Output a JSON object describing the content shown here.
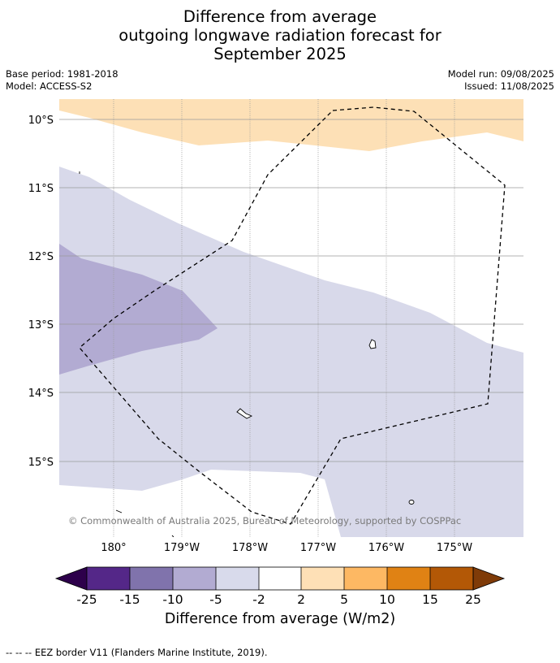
{
  "title": {
    "line1": "Difference from average",
    "line2": "outgoing longwave radiation forecast for",
    "line3": "September 2025"
  },
  "meta": {
    "base_period": "Base period: 1981-2018",
    "model": "Model: ACCESS-S2",
    "model_run": "Model run: 09/08/2025",
    "issued": "Issued: 11/08/2025"
  },
  "map": {
    "lat_labels": [
      "10°S",
      "11°S",
      "12°S",
      "13°S",
      "14°S",
      "15°S"
    ],
    "lon_labels": [
      "180°",
      "179°W",
      "178°W",
      "177°W",
      "176°W",
      "175°W"
    ],
    "copyright": "© Commonwealth of Australia 2025, Bureau of Meteorology, supported by COSPPac",
    "colors": {
      "anom_pos_2_5": "#fde0b6",
      "anom_neg_5_2": "#d8d9ea",
      "anom_neg_10_5": "#b2abd2",
      "border": "#000000",
      "gridline": "#9a9a9a"
    }
  },
  "colorbar": {
    "tick_labels": [
      "-25",
      "-15",
      "-10",
      "-5",
      "-2",
      "2",
      "5",
      "10",
      "15",
      "25"
    ],
    "segment_colors": [
      "#2d004b",
      "#542788",
      "#8073ac",
      "#b2abd2",
      "#d8daeb",
      "#ffffff",
      "#fee0b6",
      "#fdb863",
      "#e08214",
      "#b35806",
      "#7f3b08"
    ],
    "label": "Difference from average (W/m2)"
  },
  "footnote": "--  --  -- EEZ border V11 (Flanders Marine Institute, 2019)."
}
